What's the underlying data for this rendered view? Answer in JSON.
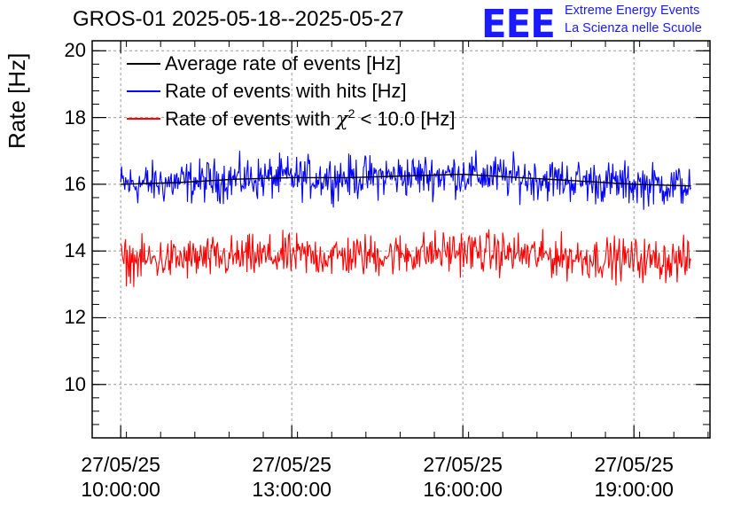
{
  "chart_data": {
    "type": "line",
    "title": "GROS-01 2025-05-18--2025-05-27",
    "ylabel": "Rate [Hz]",
    "xlabel": "",
    "ylim": [
      8.4,
      20.3
    ],
    "y_ticks": [
      "10",
      "12",
      "14",
      "16",
      "18",
      "20"
    ],
    "x_ticks": [
      {
        "date": "27/05/25",
        "time": "10:00:00"
      },
      {
        "date": "27/05/25",
        "time": "13:00:00"
      },
      {
        "date": "27/05/25",
        "time": "16:00:00"
      },
      {
        "date": "27/05/25",
        "time": "19:00:00"
      }
    ],
    "x_range_hours": [
      "09:30",
      "20:20"
    ],
    "grid": true,
    "legend_position": "top-left",
    "series": [
      {
        "name": "Average rate of events [Hz]",
        "color": "#000000",
        "x": [
          "10:00",
          "11:00",
          "12:00",
          "13:00",
          "14:00",
          "15:00",
          "16:00",
          "17:00",
          "18:00",
          "19:00",
          "20:00"
        ],
        "values": [
          16.0,
          16.05,
          16.15,
          16.2,
          16.2,
          16.25,
          16.3,
          16.2,
          16.1,
          16.0,
          15.95
        ]
      },
      {
        "name": "Rate of events with hits [Hz]",
        "color": "#0000ff",
        "x": [
          "10:00",
          "11:00",
          "12:00",
          "13:00",
          "14:00",
          "15:00",
          "16:00",
          "17:00",
          "18:00",
          "19:00",
          "20:00"
        ],
        "values": [
          16.0,
          16.05,
          16.15,
          16.2,
          16.2,
          16.25,
          16.3,
          16.2,
          16.1,
          16.0,
          15.95
        ],
        "noise": 0.45
      },
      {
        "name": "Rate of events with χ² < 10.0 [Hz]",
        "color": "#ff0000",
        "x": [
          "10:00",
          "11:00",
          "12:00",
          "13:00",
          "14:00",
          "15:00",
          "16:00",
          "17:00",
          "18:00",
          "19:00",
          "20:00"
        ],
        "values": [
          13.7,
          13.75,
          13.8,
          13.85,
          13.85,
          13.9,
          14.0,
          13.9,
          13.8,
          13.75,
          13.7
        ],
        "noise": 0.45
      }
    ]
  },
  "logo": {
    "text": "EEE",
    "line1": "Extreme Energy Events",
    "line2": "La Scienza nelle Scuole",
    "color": "#1a1aff"
  },
  "legend": {
    "avg": "Average rate of events [Hz]",
    "hits": "Rate of events with hits [Hz]",
    "chi_prefix": "Rate of events with ",
    "chi_symbol": "χ",
    "chi_exp": "2",
    "chi_suffix": " < 10.0 [Hz]"
  }
}
